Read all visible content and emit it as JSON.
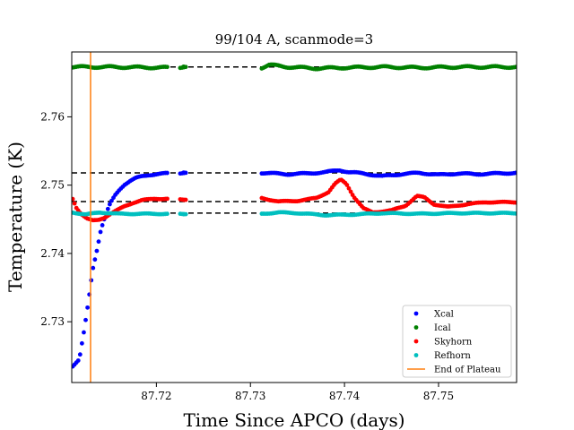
{
  "chart_data": {
    "type": "scatter",
    "title": "99/104 A, scanmode=3",
    "xlabel": "Time Since APCO (days)",
    "ylabel": "Temperature (K)",
    "xlim": [
      87.711,
      87.7583
    ],
    "ylim": [
      2.7211,
      2.7695
    ],
    "xticks": [
      87.72,
      87.73,
      87.74,
      87.75
    ],
    "xtick_labels": [
      "87.72",
      "87.73",
      "87.74",
      "87.75"
    ],
    "yticks": [
      2.73,
      2.74,
      2.75,
      2.76
    ],
    "ytick_labels": [
      "2.73",
      "2.74",
      "2.75",
      "2.76"
    ],
    "gaps": [
      [
        87.7212,
        87.7225
      ],
      [
        87.7232,
        87.7312
      ]
    ],
    "isolated_x": [
      87.7229
    ],
    "series": [
      {
        "name": "Xcal",
        "color": "#0000ff",
        "points": [
          [
            87.7111,
            2.7235
          ],
          [
            87.7118,
            2.7244
          ],
          [
            87.7123,
            2.7285
          ],
          [
            87.7128,
            2.7332
          ],
          [
            87.7132,
            2.7375
          ],
          [
            87.7137,
            2.7407
          ],
          [
            87.7141,
            2.7435
          ],
          [
            87.7146,
            2.7456
          ],
          [
            87.7151,
            2.7473
          ],
          [
            87.7156,
            2.7485
          ],
          [
            87.7161,
            2.7494
          ],
          [
            87.7166,
            2.7501
          ],
          [
            87.7172,
            2.7506
          ],
          [
            87.7178,
            2.751
          ],
          [
            87.7185,
            2.7513
          ],
          [
            87.7192,
            2.7515
          ],
          [
            87.72,
            2.7516
          ],
          [
            87.721,
            2.7517
          ],
          [
            87.7229,
            2.7518
          ],
          [
            87.7312,
            2.7518
          ],
          [
            87.734,
            2.7516
          ],
          [
            87.736,
            2.7517
          ],
          [
            87.738,
            2.7519
          ],
          [
            87.7395,
            2.7522
          ],
          [
            87.7405,
            2.7519
          ],
          [
            87.742,
            2.7517
          ],
          [
            87.744,
            2.7513
          ],
          [
            87.746,
            2.7516
          ],
          [
            87.748,
            2.7518
          ],
          [
            87.75,
            2.7515
          ],
          [
            87.752,
            2.7517
          ],
          [
            87.754,
            2.7516
          ],
          [
            87.7583,
            2.7518
          ]
        ],
        "band": 0.00018
      },
      {
        "name": "Ical",
        "color": "#008000",
        "points": [
          [
            87.7111,
            2.7673
          ],
          [
            87.715,
            2.7673
          ],
          [
            87.7212,
            2.7672
          ],
          [
            87.7229,
            2.7673
          ],
          [
            87.7312,
            2.7672
          ],
          [
            87.732,
            2.7676
          ],
          [
            87.734,
            2.7673
          ],
          [
            87.737,
            2.7671
          ],
          [
            87.74,
            2.7672
          ],
          [
            87.744,
            2.7673
          ],
          [
            87.748,
            2.7672
          ],
          [
            87.752,
            2.7673
          ],
          [
            87.7583,
            2.7673
          ]
        ],
        "band": 0.00025
      },
      {
        "name": "Skyhorn",
        "color": "#ff0000",
        "points": [
          [
            87.7111,
            2.748
          ],
          [
            87.7115,
            2.7467
          ],
          [
            87.712,
            2.7458
          ],
          [
            87.7126,
            2.7451
          ],
          [
            87.7132,
            2.7448
          ],
          [
            87.7138,
            2.7449
          ],
          [
            87.7144,
            2.7452
          ],
          [
            87.715,
            2.7457
          ],
          [
            87.7158,
            2.7463
          ],
          [
            87.7166,
            2.7469
          ],
          [
            87.7175,
            2.7474
          ],
          [
            87.7185,
            2.7478
          ],
          [
            87.7198,
            2.748
          ],
          [
            87.7212,
            2.748
          ],
          [
            87.7229,
            2.7479
          ],
          [
            87.7312,
            2.7481
          ],
          [
            87.733,
            2.7476
          ],
          [
            87.735,
            2.7477
          ],
          [
            87.737,
            2.7481
          ],
          [
            87.7383,
            2.749
          ],
          [
            87.739,
            2.7502
          ],
          [
            87.7396,
            2.7508
          ],
          [
            87.7402,
            2.7502
          ],
          [
            87.741,
            2.7483
          ],
          [
            87.742,
            2.7466
          ],
          [
            87.743,
            2.746
          ],
          [
            87.745,
            2.7463
          ],
          [
            87.7465,
            2.747
          ],
          [
            87.7477,
            2.7484
          ],
          [
            87.7485,
            2.7482
          ],
          [
            87.7495,
            2.7472
          ],
          [
            87.751,
            2.7468
          ],
          [
            87.753,
            2.7472
          ],
          [
            87.755,
            2.7475
          ],
          [
            87.7583,
            2.7475
          ]
        ],
        "band": 0.00012
      },
      {
        "name": "Refhorn",
        "color": "#00bfbf",
        "points": [
          [
            87.7111,
            2.746
          ],
          [
            87.7125,
            2.7457
          ],
          [
            87.714,
            2.746
          ],
          [
            87.716,
            2.7458
          ],
          [
            87.7212,
            2.7458
          ],
          [
            87.7229,
            2.7458
          ],
          [
            87.7312,
            2.7458
          ],
          [
            87.733,
            2.746
          ],
          [
            87.735,
            2.7459
          ],
          [
            87.738,
            2.7456
          ],
          [
            87.741,
            2.7457
          ],
          [
            87.744,
            2.7459
          ],
          [
            87.748,
            2.7458
          ],
          [
            87.752,
            2.7459
          ],
          [
            87.7583,
            2.7459
          ]
        ],
        "band": 0.00012
      },
      {
        "name": "End of Plateau",
        "color": "#ff7f0e",
        "vline_x": 87.713
      }
    ],
    "reference_lines": [
      {
        "series": "Ical",
        "y": 2.7673
      },
      {
        "series": "Xcal",
        "y": 2.7518
      },
      {
        "series": "Skyhorn",
        "y": 2.7476
      },
      {
        "series": "Refhorn",
        "y": 2.7459
      }
    ],
    "legend": {
      "placement": "lower-right"
    },
    "grid": false
  }
}
